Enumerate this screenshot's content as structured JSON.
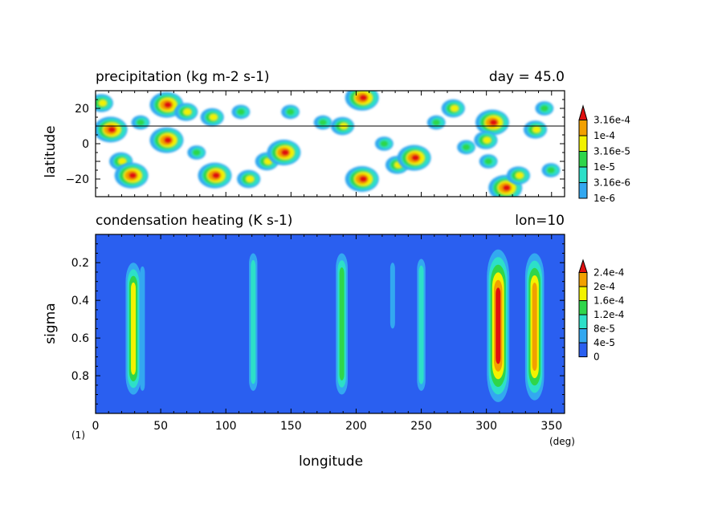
{
  "figure_label": "(1)",
  "chart_data": [
    {
      "type": "heatmap",
      "title": "precipitation (kg m-2 s-1)",
      "annotation": "day = 45.0",
      "xlabel": "",
      "ylabel": "latitude",
      "xlim": [
        0,
        360
      ],
      "ylim": [
        -30,
        30
      ],
      "ytick_values": [
        -20,
        0,
        20
      ],
      "ytick_labels": [
        "−20",
        "0",
        "20"
      ],
      "reference_line_latitude": 10,
      "colorbar": {
        "levels": [
          "1e-6",
          "3.16e-6",
          "1e-5",
          "3.16e-5",
          "1e-4",
          "3.16e-4"
        ],
        "colors": [
          "#33a8f0",
          "#2de0c8",
          "#2fd64a",
          "#f2f200",
          "#f2a000",
          "#e01010"
        ]
      },
      "blobs": [
        {
          "lon": 12,
          "lat": 8,
          "level": 5
        },
        {
          "lon": 5,
          "lat": 23,
          "level": 3
        },
        {
          "lon": 20,
          "lat": -10,
          "level": 3
        },
        {
          "lon": 28,
          "lat": -18,
          "level": 5
        },
        {
          "lon": 35,
          "lat": 12,
          "level": 2
        },
        {
          "lon": 55,
          "lat": 2,
          "level": 5
        },
        {
          "lon": 55,
          "lat": 22,
          "level": 5
        },
        {
          "lon": 70,
          "lat": 18,
          "level": 3
        },
        {
          "lon": 78,
          "lat": -5,
          "level": 2
        },
        {
          "lon": 92,
          "lat": -18,
          "level": 5
        },
        {
          "lon": 90,
          "lat": 15,
          "level": 3
        },
        {
          "lon": 112,
          "lat": 18,
          "level": 2
        },
        {
          "lon": 118,
          "lat": -20,
          "level": 3
        },
        {
          "lon": 132,
          "lat": -10,
          "level": 3
        },
        {
          "lon": 145,
          "lat": -5,
          "level": 5
        },
        {
          "lon": 150,
          "lat": 18,
          "level": 2
        },
        {
          "lon": 175,
          "lat": 12,
          "level": 2
        },
        {
          "lon": 190,
          "lat": 10,
          "level": 3
        },
        {
          "lon": 205,
          "lat": 26,
          "level": 5
        },
        {
          "lon": 205,
          "lat": -20,
          "level": 5
        },
        {
          "lon": 222,
          "lat": 0,
          "level": 2
        },
        {
          "lon": 232,
          "lat": -12,
          "level": 3
        },
        {
          "lon": 245,
          "lat": -8,
          "level": 5
        },
        {
          "lon": 262,
          "lat": 12,
          "level": 2
        },
        {
          "lon": 275,
          "lat": 20,
          "level": 3
        },
        {
          "lon": 285,
          "lat": -2,
          "level": 2
        },
        {
          "lon": 305,
          "lat": 12,
          "level": 5
        },
        {
          "lon": 300,
          "lat": 2,
          "level": 3
        },
        {
          "lon": 315,
          "lat": -25,
          "level": 5
        },
        {
          "lon": 325,
          "lat": -18,
          "level": 3
        },
        {
          "lon": 338,
          "lat": 8,
          "level": 3
        },
        {
          "lon": 345,
          "lat": 20,
          "level": 2
        },
        {
          "lon": 350,
          "lat": -15,
          "level": 2
        },
        {
          "lon": 302,
          "lat": -10,
          "level": 2
        }
      ]
    },
    {
      "type": "heatmap",
      "title": "condensation heating (K s-1)",
      "annotation": "lon=10",
      "xlabel": "longitude",
      "ylabel": "sigma",
      "xunit": "(deg)",
      "xlim": [
        0,
        360
      ],
      "ylim": [
        1.0,
        0.05
      ],
      "xtick_values": [
        0,
        50,
        100,
        150,
        200,
        250,
        300,
        350
      ],
      "xtick_labels": [
        "0",
        "50",
        "100",
        "150",
        "200",
        "250",
        "300",
        "350"
      ],
      "ytick_values": [
        0.2,
        0.4,
        0.6,
        0.8
      ],
      "ytick_labels": [
        "0.2",
        "0.4",
        "0.6",
        "0.8"
      ],
      "colorbar": {
        "levels": [
          "0",
          "4e-5",
          "8e-5",
          "1.2e-4",
          "1.6e-4",
          "2e-4",
          "2.4e-4"
        ],
        "colors": [
          "#2a5ff0",
          "#33a8f0",
          "#2de0c8",
          "#2fd64a",
          "#f2f200",
          "#f2a000",
          "#e01010"
        ]
      },
      "columns": [
        {
          "lon": 29,
          "level": 4,
          "top": 0.2,
          "bottom": 0.9
        },
        {
          "lon": 36,
          "level": 1,
          "top": 0.22,
          "bottom": 0.88
        },
        {
          "lon": 121,
          "level": 2,
          "top": 0.15,
          "bottom": 0.88
        },
        {
          "lon": 189,
          "level": 3,
          "top": 0.15,
          "bottom": 0.9
        },
        {
          "lon": 228,
          "level": 1,
          "top": 0.2,
          "bottom": 0.55
        },
        {
          "lon": 250,
          "level": 2,
          "top": 0.18,
          "bottom": 0.88
        },
        {
          "lon": 309,
          "level": 6,
          "top": 0.13,
          "bottom": 0.94
        },
        {
          "lon": 337,
          "level": 5,
          "top": 0.15,
          "bottom": 0.93
        }
      ]
    }
  ]
}
